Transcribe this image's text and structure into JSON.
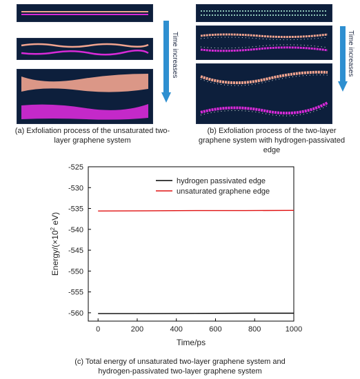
{
  "panel_a": {
    "arrow_text": "Time increases",
    "caption_line1": "(a) Exfoliation process of the unsaturated two-",
    "caption_line2": "layer graphene system"
  },
  "panel_b": {
    "arrow_text": "Time increases",
    "caption_line1": "(b) Exfoliation process of the two-layer",
    "caption_line2": "graphene system with hydrogen-passivated",
    "caption_line3": "edge"
  },
  "panel_c": {
    "caption_line1": "(c) Total energy of  unsaturated two-layer graphene system and",
    "caption_line2": "hydrogen-passivated  two-layer graphene system"
  },
  "colors": {
    "sim_background": "#0d1f3c",
    "layer_top": "#f2a48f",
    "layer_bottom": "#d82ad8",
    "hydrogen": "#e8e8e8",
    "arrow": "#2e8fd0",
    "series_hydrogen": "#000000",
    "series_unsaturated": "#e01010"
  },
  "chart_data": {
    "type": "line",
    "title": "",
    "xlabel": "Time/ps",
    "ylabel_main": "Energy/(×10",
    "ylabel_sup": "2",
    "ylabel_tail": " eV)",
    "xlim": [
      -50,
      1000
    ],
    "ylim": [
      -562,
      -525
    ],
    "xticks": [
      0,
      200,
      400,
      600,
      800,
      1000
    ],
    "yticks": [
      -525,
      -530,
      -535,
      -540,
      -545,
      -550,
      -555,
      -560
    ],
    "grid": false,
    "legend_position": "top-right",
    "series": [
      {
        "name": "hydrogen passivated edge",
        "color": "#000000",
        "x": [
          0,
          250,
          500,
          750,
          1000
        ],
        "y": [
          -560.2,
          -560.2,
          -560.15,
          -560.1,
          -560.1
        ]
      },
      {
        "name": "unsaturated graphene edge",
        "color": "#e01010",
        "x": [
          0,
          250,
          500,
          750,
          1000
        ],
        "y": [
          -535.6,
          -535.55,
          -535.5,
          -535.5,
          -535.45
        ]
      }
    ]
  }
}
